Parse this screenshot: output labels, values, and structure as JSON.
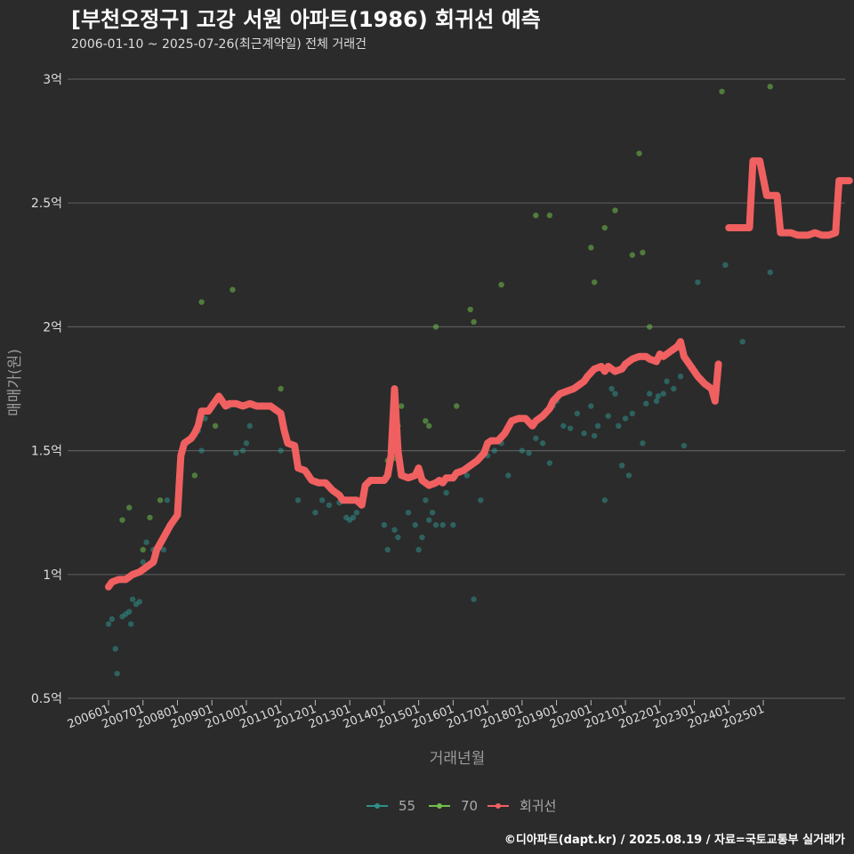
{
  "chart_data": {
    "type": "scatter",
    "title": "[부천오정구] 고강 서원 아파트(1986) 회귀선 예측",
    "subtitle": "2006-01-10 ~ 2025-07-26(최근계약일) 전체 거래건",
    "xlabel": "거래년월",
    "ylabel": "매매가(원)",
    "ylim": [
      0.5,
      3.0
    ],
    "y_ticks": [
      {
        "value": 0.5,
        "label": "0.5억"
      },
      {
        "value": 1.0,
        "label": "1억"
      },
      {
        "value": 1.5,
        "label": "1.5억"
      },
      {
        "value": 2.0,
        "label": "2억"
      },
      {
        "value": 2.5,
        "label": "2.5억"
      },
      {
        "value": 3.0,
        "label": "3억"
      }
    ],
    "x_ticks": [
      "200601",
      "200701",
      "200801",
      "200901",
      "201001",
      "201101",
      "201201",
      "201301",
      "201401",
      "201501",
      "201601",
      "201701",
      "201801",
      "201901",
      "202001",
      "202101",
      "202201",
      "202301",
      "202401",
      "202501"
    ],
    "grid": true,
    "legend_position": "bottom",
    "footer": "©디아파트(dapt.kr) / 2025.08.19 / 자료=국토교통부 실거래가",
    "series": [
      {
        "name": "55",
        "color": "#2f8f8a",
        "points": [
          [
            2006.0,
            0.8
          ],
          [
            2006.1,
            0.82
          ],
          [
            2006.2,
            0.7
          ],
          [
            2006.25,
            0.6
          ],
          [
            2006.4,
            0.83
          ],
          [
            2006.5,
            0.84
          ],
          [
            2006.6,
            0.85
          ],
          [
            2006.65,
            0.8
          ],
          [
            2006.7,
            0.9
          ],
          [
            2006.8,
            0.88
          ],
          [
            2006.9,
            0.89
          ],
          [
            2007.0,
            1.05
          ],
          [
            2007.1,
            1.13
          ],
          [
            2007.3,
            1.1
          ],
          [
            2007.6,
            1.1
          ],
          [
            2007.7,
            1.3
          ],
          [
            2008.6,
            1.58
          ],
          [
            2008.7,
            1.5
          ],
          [
            2008.8,
            1.63
          ],
          [
            2009.3,
            1.7
          ],
          [
            2009.5,
            1.68
          ],
          [
            2009.7,
            1.49
          ],
          [
            2009.9,
            1.5
          ],
          [
            2010.0,
            1.53
          ],
          [
            2010.1,
            1.6
          ],
          [
            2011.0,
            1.5
          ],
          [
            2011.5,
            1.3
          ],
          [
            2012.0,
            1.25
          ],
          [
            2012.2,
            1.3
          ],
          [
            2012.4,
            1.28
          ],
          [
            2012.7,
            1.29
          ],
          [
            2012.9,
            1.23
          ],
          [
            2013.0,
            1.22
          ],
          [
            2013.1,
            1.23
          ],
          [
            2013.2,
            1.25
          ],
          [
            2014.0,
            1.2
          ],
          [
            2014.1,
            1.1
          ],
          [
            2014.3,
            1.18
          ],
          [
            2014.4,
            1.15
          ],
          [
            2014.7,
            1.25
          ],
          [
            2014.9,
            1.2
          ],
          [
            2015.0,
            1.1
          ],
          [
            2015.1,
            1.15
          ],
          [
            2015.2,
            1.3
          ],
          [
            2015.3,
            1.22
          ],
          [
            2015.4,
            1.25
          ],
          [
            2015.5,
            1.2
          ],
          [
            2015.7,
            1.2
          ],
          [
            2015.8,
            1.33
          ],
          [
            2016.0,
            1.2
          ],
          [
            2016.4,
            1.4
          ],
          [
            2016.6,
            0.9
          ],
          [
            2016.8,
            1.3
          ],
          [
            2017.0,
            1.48
          ],
          [
            2017.2,
            1.5
          ],
          [
            2017.4,
            1.53
          ],
          [
            2017.6,
            1.4
          ],
          [
            2018.0,
            1.5
          ],
          [
            2018.2,
            1.49
          ],
          [
            2018.4,
            1.55
          ],
          [
            2018.6,
            1.53
          ],
          [
            2018.8,
            1.45
          ],
          [
            2018.9,
            1.68
          ],
          [
            2019.0,
            1.7
          ],
          [
            2019.2,
            1.6
          ],
          [
            2019.4,
            1.59
          ],
          [
            2019.6,
            1.65
          ],
          [
            2019.8,
            1.57
          ],
          [
            2020.0,
            1.68
          ],
          [
            2020.1,
            1.56
          ],
          [
            2020.2,
            1.6
          ],
          [
            2020.4,
            1.3
          ],
          [
            2020.5,
            1.64
          ],
          [
            2020.6,
            1.75
          ],
          [
            2020.7,
            1.73
          ],
          [
            2020.8,
            1.6
          ],
          [
            2020.9,
            1.44
          ],
          [
            2021.0,
            1.63
          ],
          [
            2021.1,
            1.4
          ],
          [
            2021.2,
            1.65
          ],
          [
            2021.5,
            1.53
          ],
          [
            2021.6,
            1.69
          ],
          [
            2021.7,
            1.73
          ],
          [
            2021.9,
            1.7
          ],
          [
            2021.95,
            1.72
          ],
          [
            2022.1,
            1.73
          ],
          [
            2022.2,
            1.78
          ],
          [
            2022.4,
            1.75
          ],
          [
            2022.6,
            1.8
          ],
          [
            2022.7,
            1.52
          ],
          [
            2023.1,
            2.18
          ],
          [
            2023.9,
            2.25
          ],
          [
            2024.4,
            1.94
          ],
          [
            2025.2,
            2.22
          ]
        ]
      },
      {
        "name": "70",
        "color": "#6fbf4a",
        "points": [
          [
            2006.4,
            1.22
          ],
          [
            2006.6,
            1.27
          ],
          [
            2007.2,
            1.23
          ],
          [
            2007.0,
            1.1
          ],
          [
            2007.5,
            1.3
          ],
          [
            2008.5,
            1.4
          ],
          [
            2008.7,
            2.1
          ],
          [
            2009.1,
            1.6
          ],
          [
            2009.6,
            2.15
          ],
          [
            2011.0,
            1.75
          ],
          [
            2014.1,
            1.46
          ],
          [
            2014.3,
            1.47
          ],
          [
            2014.4,
            1.6
          ],
          [
            2014.5,
            1.68
          ],
          [
            2015.2,
            1.62
          ],
          [
            2015.3,
            1.6
          ],
          [
            2015.5,
            2.0
          ],
          [
            2016.1,
            1.68
          ],
          [
            2016.5,
            2.07
          ],
          [
            2016.6,
            2.02
          ],
          [
            2017.4,
            2.17
          ],
          [
            2018.1,
            1.63
          ],
          [
            2018.4,
            2.45
          ],
          [
            2018.8,
            2.45
          ],
          [
            2020.0,
            2.32
          ],
          [
            2020.1,
            2.18
          ],
          [
            2020.4,
            2.4
          ],
          [
            2020.7,
            2.47
          ],
          [
            2021.2,
            2.29
          ],
          [
            2021.4,
            2.7
          ],
          [
            2021.5,
            2.3
          ],
          [
            2021.7,
            2.0
          ],
          [
            2023.8,
            2.95
          ],
          [
            2025.2,
            2.97
          ]
        ]
      },
      {
        "name": "회귀선",
        "color": "#f06060",
        "points": [
          [
            2006.0,
            0.95
          ],
          [
            2006.1,
            0.97
          ],
          [
            2006.3,
            0.98
          ],
          [
            2006.5,
            0.98
          ],
          [
            2006.7,
            1.0
          ],
          [
            2006.9,
            1.01
          ],
          [
            2007.1,
            1.03
          ],
          [
            2007.3,
            1.05
          ],
          [
            2007.4,
            1.1
          ],
          [
            2007.6,
            1.15
          ],
          [
            2007.8,
            1.2
          ],
          [
            2008.0,
            1.24
          ],
          [
            2008.1,
            1.48
          ],
          [
            2008.2,
            1.53
          ],
          [
            2008.4,
            1.55
          ],
          [
            2008.5,
            1.57
          ],
          [
            2008.6,
            1.6
          ],
          [
            2008.7,
            1.66
          ],
          [
            2008.9,
            1.66
          ],
          [
            2009.1,
            1.7
          ],
          [
            2009.2,
            1.72
          ],
          [
            2009.3,
            1.7
          ],
          [
            2009.4,
            1.68
          ],
          [
            2009.5,
            1.69
          ],
          [
            2009.7,
            1.69
          ],
          [
            2009.9,
            1.68
          ],
          [
            2010.1,
            1.69
          ],
          [
            2010.3,
            1.68
          ],
          [
            2010.5,
            1.68
          ],
          [
            2010.7,
            1.68
          ],
          [
            2011.0,
            1.65
          ],
          [
            2011.1,
            1.58
          ],
          [
            2011.2,
            1.53
          ],
          [
            2011.4,
            1.52
          ],
          [
            2011.5,
            1.43
          ],
          [
            2011.7,
            1.42
          ],
          [
            2011.9,
            1.38
          ],
          [
            2012.1,
            1.37
          ],
          [
            2012.3,
            1.37
          ],
          [
            2012.5,
            1.34
          ],
          [
            2012.7,
            1.32
          ],
          [
            2012.8,
            1.3
          ],
          [
            2013.0,
            1.3
          ],
          [
            2013.2,
            1.3
          ],
          [
            2013.35,
            1.28
          ],
          [
            2013.45,
            1.36
          ],
          [
            2013.6,
            1.38
          ],
          [
            2013.8,
            1.38
          ],
          [
            2014.0,
            1.38
          ],
          [
            2014.1,
            1.4
          ],
          [
            2014.2,
            1.48
          ],
          [
            2014.3,
            1.75
          ],
          [
            2014.4,
            1.5
          ],
          [
            2014.5,
            1.4
          ],
          [
            2014.7,
            1.39
          ],
          [
            2014.9,
            1.4
          ],
          [
            2015.0,
            1.43
          ],
          [
            2015.1,
            1.38
          ],
          [
            2015.3,
            1.36
          ],
          [
            2015.5,
            1.37
          ],
          [
            2015.6,
            1.38
          ],
          [
            2015.7,
            1.37
          ],
          [
            2015.8,
            1.39
          ],
          [
            2016.0,
            1.39
          ],
          [
            2016.1,
            1.41
          ],
          [
            2016.3,
            1.42
          ],
          [
            2016.5,
            1.44
          ],
          [
            2016.7,
            1.46
          ],
          [
            2016.9,
            1.49
          ],
          [
            2017.0,
            1.53
          ],
          [
            2017.1,
            1.54
          ],
          [
            2017.3,
            1.54
          ],
          [
            2017.5,
            1.57
          ],
          [
            2017.7,
            1.62
          ],
          [
            2017.9,
            1.63
          ],
          [
            2018.1,
            1.63
          ],
          [
            2018.3,
            1.6
          ],
          [
            2018.4,
            1.62
          ],
          [
            2018.6,
            1.64
          ],
          [
            2018.8,
            1.67
          ],
          [
            2018.9,
            1.7
          ],
          [
            2019.1,
            1.73
          ],
          [
            2019.3,
            1.74
          ],
          [
            2019.5,
            1.75
          ],
          [
            2019.6,
            1.76
          ],
          [
            2019.8,
            1.78
          ],
          [
            2019.9,
            1.8
          ],
          [
            2020.1,
            1.83
          ],
          [
            2020.3,
            1.84
          ],
          [
            2020.4,
            1.82
          ],
          [
            2020.5,
            1.84
          ],
          [
            2020.7,
            1.82
          ],
          [
            2020.9,
            1.83
          ],
          [
            2021.0,
            1.85
          ],
          [
            2021.2,
            1.87
          ],
          [
            2021.4,
            1.88
          ],
          [
            2021.6,
            1.88
          ],
          [
            2021.7,
            1.87
          ],
          [
            2021.9,
            1.86
          ],
          [
            2022.0,
            1.89
          ],
          [
            2022.1,
            1.88
          ],
          [
            2022.3,
            1.9
          ],
          [
            2022.5,
            1.92
          ],
          [
            2022.6,
            1.94
          ],
          [
            2022.7,
            1.88
          ],
          [
            2022.9,
            1.84
          ],
          [
            2023.1,
            1.8
          ],
          [
            2023.3,
            1.77
          ],
          [
            2023.5,
            1.75
          ],
          [
            2023.6,
            1.7
          ],
          [
            2023.7,
            1.85
          ]
        ],
        "segment2": [
          [
            2024.0,
            2.4
          ],
          [
            2024.4,
            2.4
          ],
          [
            2024.6,
            2.4
          ],
          [
            2024.7,
            2.67
          ],
          [
            2024.9,
            2.67
          ],
          [
            2025.1,
            2.53
          ],
          [
            2025.4,
            2.53
          ],
          [
            2025.5,
            2.38
          ],
          [
            2025.8,
            2.38
          ],
          [
            2026.0,
            2.37
          ],
          [
            2026.3,
            2.37
          ],
          [
            2026.5,
            2.38
          ],
          [
            2026.7,
            2.37
          ],
          [
            2026.9,
            2.37
          ],
          [
            2027.1,
            2.38
          ],
          [
            2027.2,
            2.59
          ],
          [
            2027.5,
            2.59
          ]
        ]
      }
    ]
  }
}
